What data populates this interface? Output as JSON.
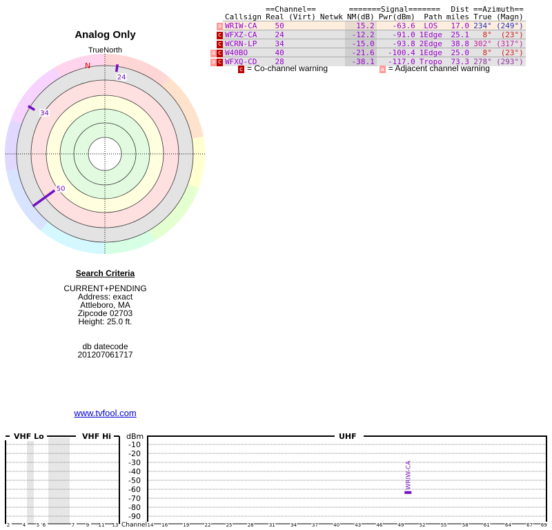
{
  "polar": {
    "title": "Analog Only",
    "north_label": "TrueNorth",
    "n_marker": "N",
    "stations": [
      {
        "label": "24",
        "azimuth": 8,
        "color": "#7010c0"
      },
      {
        "label": "34",
        "azimuth": 302,
        "color": "#7010c0"
      },
      {
        "label": "50",
        "azimuth": 234,
        "color": "#7010c0"
      }
    ]
  },
  "table": {
    "group_channel": "==Channel==",
    "group_signal": "=======Signal=======",
    "group_dist": "Dist",
    "group_azimuth": "==Azimuth==",
    "headers": [
      "Callsign",
      "Real",
      "(Virt)",
      "Netwk",
      "NM(dB)",
      "Pwr(dBm)",
      "Path",
      "miles",
      "True",
      "(Magn)"
    ],
    "rows": [
      {
        "warn": [
          "a"
        ],
        "callsign": "WRIW-CA",
        "real": "50",
        "virt": "",
        "netwk": "",
        "nm": "15.2",
        "pwr": "-63.6",
        "path": "LOS",
        "miles": "17.0",
        "true": "234°",
        "magn": "(249°)",
        "az_color": "#2030c0"
      },
      {
        "warn": [
          "c"
        ],
        "callsign": "WFXZ-CA",
        "real": "24",
        "virt": "",
        "netwk": "",
        "nm": "-12.2",
        "pwr": "-91.0",
        "path": "1Edge",
        "miles": "25.1",
        "true": "8°",
        "magn": "(23°)",
        "az_color": "#d02020"
      },
      {
        "warn": [
          "c"
        ],
        "callsign": "WCRN-LP",
        "real": "34",
        "virt": "",
        "netwk": "",
        "nm": "-15.0",
        "pwr": "-93.8",
        "path": "2Edge",
        "miles": "38.8",
        "true": "302°",
        "magn": "(317°)",
        "az_color": "#c020a0"
      },
      {
        "warn": [
          "a",
          "c"
        ],
        "callsign": "W40BO",
        "real": "40",
        "virt": "",
        "netwk": "",
        "nm": "-21.6",
        "pwr": "-100.4",
        "path": "1Edge",
        "miles": "25.0",
        "true": "8°",
        "magn": "(23°)",
        "az_color": "#d02020"
      },
      {
        "warn": [
          "a",
          "c"
        ],
        "callsign": "WFXQ-CD",
        "real": "28",
        "virt": "",
        "netwk": "",
        "nm": "-38.1",
        "pwr": "-117.0",
        "path": "Tropo",
        "miles": "73.3",
        "true": "278°",
        "magn": "(293°)",
        "az_color": "#9030a0"
      }
    ]
  },
  "legend": {
    "co_icon": "c",
    "co_label": "= Co-channel warning",
    "adj_icon": "a",
    "adj_label": "= Adjacent channel warning"
  },
  "criteria": {
    "heading": "Search Criteria",
    "lines": [
      "CURRENT+PENDING",
      "Address: exact",
      "Attleboro, MA",
      "Zipcode 02703",
      "Height: 25.0 ft."
    ],
    "db_label": "db datecode",
    "db_value": "201207061717"
  },
  "link": "www.tvfool.com",
  "spectrum": {
    "vhf_lo": "VHF Lo",
    "vhf_hi": "VHF Hi",
    "uhf": "UHF",
    "dbm": "dBm",
    "channel_label": "Channel",
    "dbm_ticks": [
      "-10",
      "-20",
      "-30",
      "-40",
      "-50",
      "-60",
      "-70",
      "-80",
      "-90"
    ],
    "vhf_channels": [
      "2",
      "4",
      "5",
      "6",
      "7",
      "9",
      "11",
      "13"
    ],
    "uhf_channels": [
      "14",
      "16",
      "19",
      "22",
      "25",
      "28",
      "31",
      "34",
      "37",
      "40",
      "43",
      "46",
      "49",
      "52",
      "55",
      "58",
      "61",
      "64",
      "67",
      "69"
    ],
    "bars": [
      {
        "callsign": "WRIW-CA",
        "channel": 50,
        "dbm": -63.6,
        "color": "#7010c0"
      }
    ]
  }
}
